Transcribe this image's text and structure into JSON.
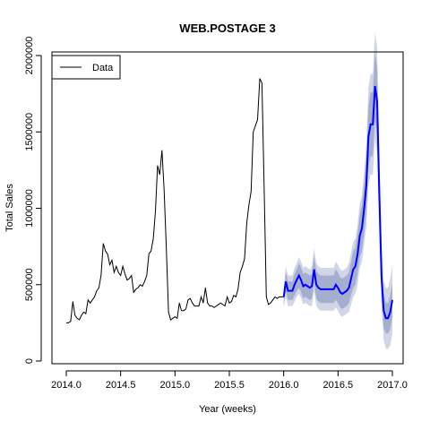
{
  "chart_data": {
    "type": "line",
    "title": "WEB.POSTAGE 3",
    "xlabel": "Year (weeks)",
    "ylabel": "Total Sales",
    "xlim": [
      2014.0,
      2017.0
    ],
    "ylim": [
      0,
      2000000
    ],
    "x_ticks": [
      2014.0,
      2014.5,
      2015.0,
      2015.5,
      2016.0,
      2016.5,
      2017.0
    ],
    "x_tick_labels": [
      "2014.0",
      "2014.5",
      "2015.0",
      "2015.5",
      "2016.0",
      "2016.5",
      "2017.0"
    ],
    "y_ticks": [
      0,
      500000,
      1000000,
      1500000,
      2000000
    ],
    "y_tick_labels": [
      "0",
      "500000",
      "1000000",
      "1500000",
      "2000000"
    ],
    "grid": false,
    "legend": {
      "position": "top-left",
      "entries": [
        "Data"
      ]
    },
    "colors": {
      "data": "#000000",
      "forecast": "#0000ff",
      "band_outer": "#d1d6e6",
      "band_inner": "#a6aed0"
    },
    "series": [
      {
        "name": "Data",
        "x": [
          2014.0,
          2014.02,
          2014.04,
          2014.06,
          2014.08,
          2014.1,
          2014.12,
          2014.14,
          2014.16,
          2014.18,
          2014.2,
          2014.22,
          2014.24,
          2014.26,
          2014.28,
          2014.3,
          2014.32,
          2014.34,
          2014.36,
          2014.38,
          2014.4,
          2014.42,
          2014.44,
          2014.46,
          2014.48,
          2014.5,
          2014.52,
          2014.54,
          2014.56,
          2014.58,
          2014.6,
          2014.62,
          2014.64,
          2014.66,
          2014.68,
          2014.7,
          2014.72,
          2014.74,
          2014.76,
          2014.78,
          2014.8,
          2014.82,
          2014.84,
          2014.86,
          2014.88,
          2014.9,
          2014.92,
          2014.94,
          2014.96,
          2014.98,
          2015.0,
          2015.02,
          2015.04,
          2015.06,
          2015.08,
          2015.1,
          2015.12,
          2015.14,
          2015.16,
          2015.18,
          2015.2,
          2015.22,
          2015.24,
          2015.26,
          2015.28,
          2015.3,
          2015.32,
          2015.34,
          2015.36,
          2015.38,
          2015.4,
          2015.42,
          2015.44,
          2015.46,
          2015.48,
          2015.5,
          2015.52,
          2015.54,
          2015.56,
          2015.58,
          2015.6,
          2015.62,
          2015.64,
          2015.66,
          2015.68,
          2015.7,
          2015.72,
          2015.74,
          2015.76,
          2015.78,
          2015.8,
          2015.82,
          2015.84,
          2015.86,
          2015.88,
          2015.9,
          2015.92,
          2015.94,
          2015.96,
          2015.98,
          2016.0
        ],
        "y": [
          250000,
          250000,
          260000,
          390000,
          300000,
          280000,
          270000,
          300000,
          320000,
          310000,
          400000,
          380000,
          400000,
          420000,
          460000,
          480000,
          560000,
          770000,
          720000,
          700000,
          630000,
          660000,
          580000,
          620000,
          580000,
          560000,
          620000,
          570000,
          530000,
          540000,
          560000,
          450000,
          470000,
          480000,
          500000,
          490000,
          520000,
          560000,
          700000,
          720000,
          800000,
          980000,
          1280000,
          1220000,
          1380000,
          1120000,
          750000,
          320000,
          270000,
          280000,
          290000,
          280000,
          380000,
          330000,
          330000,
          340000,
          400000,
          410000,
          380000,
          360000,
          360000,
          360000,
          420000,
          380000,
          480000,
          380000,
          360000,
          360000,
          350000,
          360000,
          370000,
          380000,
          370000,
          360000,
          420000,
          380000,
          390000,
          430000,
          420000,
          470000,
          580000,
          620000,
          670000,
          900000,
          1020000,
          1110000,
          1500000,
          1540000,
          1580000,
          1850000,
          1820000,
          1150000,
          420000,
          370000,
          380000,
          400000,
          420000,
          410000,
          420000,
          420000,
          420000
        ]
      },
      {
        "name": "",
        "x": [
          2016.0,
          2016.02,
          2016.04,
          2016.06,
          2016.08,
          2016.1,
          2016.12,
          2016.14,
          2016.16,
          2016.18,
          2016.2,
          2016.22,
          2016.24,
          2016.26,
          2016.28,
          2016.3,
          2016.32,
          2016.34,
          2016.36,
          2016.38,
          2016.4,
          2016.42,
          2016.44,
          2016.46,
          2016.48,
          2016.5,
          2016.52,
          2016.54,
          2016.56,
          2016.58,
          2016.6,
          2016.62,
          2016.64,
          2016.66,
          2016.68,
          2016.7,
          2016.72,
          2016.74,
          2016.76,
          2016.78,
          2016.8,
          2016.82,
          2016.84,
          2016.86,
          2016.88,
          2016.9,
          2016.92,
          2016.94,
          2016.96,
          2016.98,
          2017.0
        ],
        "y": [
          420000,
          520000,
          460000,
          460000,
          460000,
          500000,
          530000,
          560000,
          530000,
          490000,
          500000,
          490000,
          480000,
          490000,
          600000,
          500000,
          480000,
          470000,
          470000,
          470000,
          470000,
          470000,
          470000,
          470000,
          500000,
          480000,
          450000,
          440000,
          450000,
          460000,
          480000,
          540000,
          600000,
          620000,
          700000,
          820000,
          870000,
          1000000,
          1150000,
          1470000,
          1550000,
          1550000,
          1800000,
          1700000,
          1100000,
          550000,
          330000,
          280000,
          280000,
          320000,
          400000
        ],
        "lower_80": [
          380000,
          460000,
          400000,
          400000,
          400000,
          430000,
          460000,
          480000,
          450000,
          410000,
          420000,
          410000,
          400000,
          410000,
          510000,
          410000,
          390000,
          380000,
          380000,
          380000,
          380000,
          380000,
          380000,
          380000,
          400000,
          380000,
          350000,
          340000,
          350000,
          360000,
          380000,
          430000,
          480000,
          500000,
          570000,
          680000,
          720000,
          840000,
          970000,
          1270000,
          1340000,
          1340000,
          1580000,
          1480000,
          920000,
          420000,
          220000,
          180000,
          180000,
          210000,
          290000
        ],
        "upper_80": [
          460000,
          580000,
          520000,
          520000,
          520000,
          570000,
          600000,
          640000,
          610000,
          570000,
          580000,
          570000,
          560000,
          570000,
          690000,
          590000,
          570000,
          560000,
          560000,
          560000,
          560000,
          560000,
          560000,
          560000,
          600000,
          580000,
          550000,
          540000,
          550000,
          560000,
          580000,
          650000,
          720000,
          740000,
          830000,
          960000,
          1020000,
          1160000,
          1330000,
          1670000,
          1760000,
          1760000,
          2020000,
          1920000,
          1280000,
          680000,
          440000,
          380000,
          380000,
          430000,
          510000
        ],
        "lower_95": [
          350000,
          420000,
          360000,
          360000,
          360000,
          390000,
          420000,
          440000,
          410000,
          370000,
          380000,
          370000,
          360000,
          360000,
          460000,
          360000,
          340000,
          330000,
          330000,
          330000,
          330000,
          330000,
          330000,
          330000,
          350000,
          330000,
          300000,
          290000,
          300000,
          310000,
          320000,
          370000,
          420000,
          440000,
          500000,
          610000,
          650000,
          760000,
          880000,
          1150000,
          1220000,
          1220000,
          1450000,
          1350000,
          820000,
          340000,
          140000,
          80000,
          80000,
          100000,
          180000
        ],
        "upper_95": [
          490000,
          620000,
          560000,
          560000,
          560000,
          610000,
          640000,
          680000,
          650000,
          610000,
          620000,
          610000,
          600000,
          620000,
          740000,
          640000,
          620000,
          610000,
          610000,
          610000,
          610000,
          610000,
          610000,
          610000,
          650000,
          630000,
          600000,
          590000,
          600000,
          610000,
          640000,
          710000,
          780000,
          800000,
          900000,
          1030000,
          1090000,
          1240000,
          1420000,
          1790000,
          1880000,
          1880000,
          2150000,
          2050000,
          1380000,
          760000,
          520000,
          480000,
          480000,
          540000,
          620000
        ]
      }
    ]
  }
}
